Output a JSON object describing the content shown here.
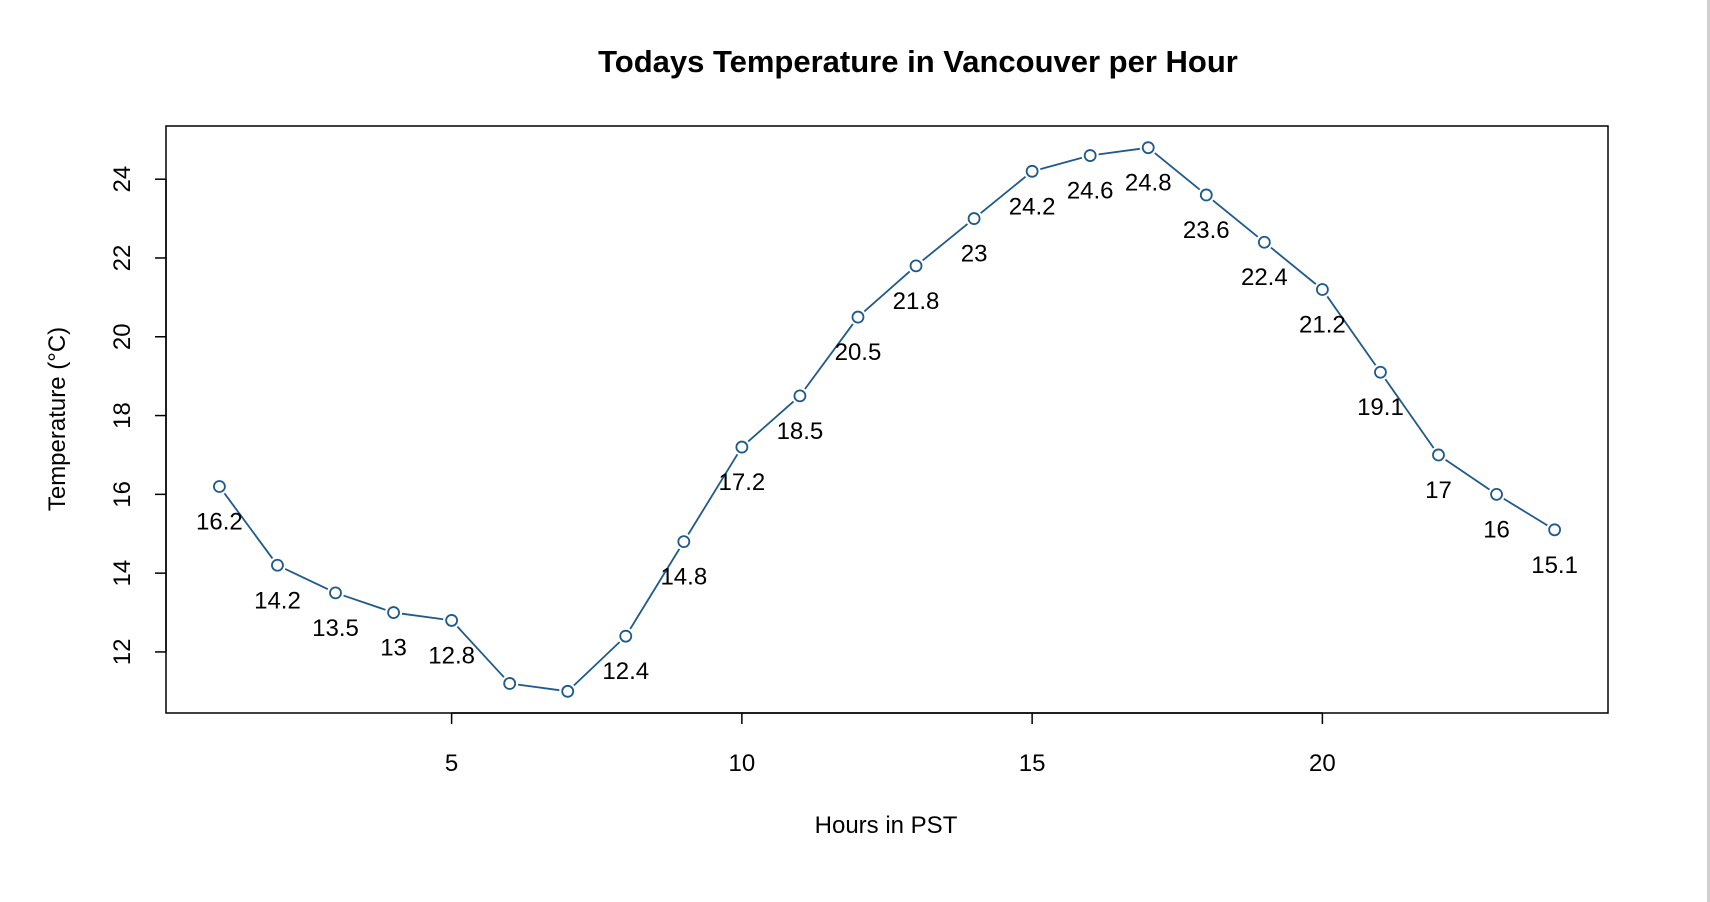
{
  "chart_data": {
    "type": "line",
    "title": "Todays Temperature in Vancouver per Hour",
    "xlabel": "Hours in PST",
    "ylabel": "Temperature (°C)",
    "xlim": [
      0.08,
      24.92
    ],
    "ylim": [
      10.45,
      25.35
    ],
    "x_ticks": [
      5,
      10,
      15,
      20
    ],
    "y_ticks": [
      12,
      14,
      16,
      18,
      20,
      22,
      24
    ],
    "grid": false,
    "legend": "none",
    "marker": "open-circle",
    "colors": {
      "series": "#1f5a8c"
    },
    "series": [
      {
        "x": [
          1,
          2,
          3,
          4,
          5,
          6,
          7,
          8,
          9,
          10,
          11,
          12,
          13,
          14,
          15,
          16,
          17,
          18,
          19,
          20,
          21,
          22,
          23,
          24
        ],
        "values": [
          16.2,
          14.2,
          13.5,
          13,
          12.8,
          11.2,
          11,
          12.4,
          14.8,
          17.2,
          18.5,
          20.5,
          21.8,
          23,
          24.2,
          24.6,
          24.8,
          23.6,
          22.4,
          21.2,
          19.1,
          17,
          16,
          15.1
        ],
        "labels": [
          "16.2",
          "14.2",
          "13.5",
          "13",
          "12.8",
          "",
          "",
          "12.4",
          "14.8",
          "17.2",
          "18.5",
          "20.5",
          "21.8",
          "23",
          "24.2",
          "24.6",
          "24.8",
          "23.6",
          "22.4",
          "21.2",
          "19.1",
          "17",
          "16",
          "15.1"
        ]
      }
    ]
  }
}
